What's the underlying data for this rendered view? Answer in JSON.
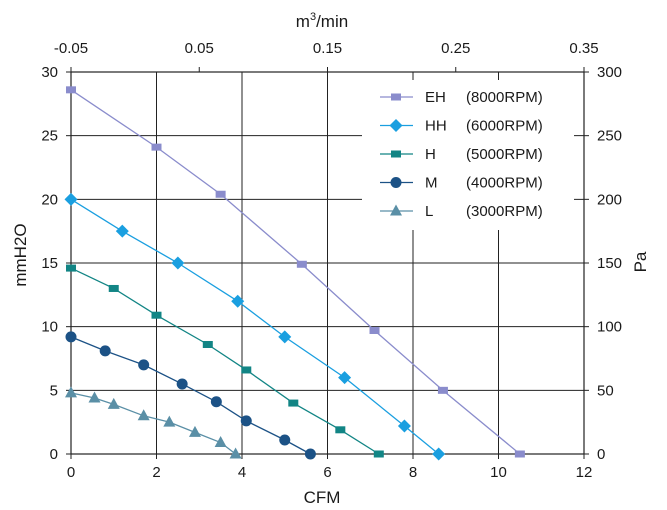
{
  "chart_data": {
    "type": "line",
    "xlabel": "CFM",
    "ylabel": "mmH2O",
    "top_xlabel": "m3/min",
    "right_ylabel": "Pa",
    "xlim": [
      0,
      12
    ],
    "ylim": [
      0,
      30
    ],
    "x_ticks": [
      0,
      2,
      4,
      6,
      8,
      10,
      12
    ],
    "y_ticks": [
      0,
      5,
      10,
      15,
      20,
      25,
      30
    ],
    "top_axis": {
      "label_base": "m",
      "label_sup": "3",
      "label_rest": "/min",
      "ticks": [
        "-0.05",
        "0.05",
        "0.15",
        "0.25",
        "0.35"
      ]
    },
    "right_axis": {
      "label": "Pa",
      "ticks": [
        "0",
        "50",
        "100",
        "150",
        "200",
        "250",
        "300"
      ]
    },
    "grid": true,
    "legend_position": "top-right",
    "series": [
      {
        "name": "EH",
        "rpm": "(8000RPM)",
        "color": "#8a8ccc",
        "marker": "square",
        "points": [
          [
            0,
            28.6
          ],
          [
            2,
            24.1
          ],
          [
            3.5,
            20.4
          ],
          [
            5.4,
            14.9
          ],
          [
            7.1,
            9.7
          ],
          [
            8.7,
            5.0
          ],
          [
            10.5,
            0
          ]
        ]
      },
      {
        "name": "HH",
        "rpm": "(6000RPM)",
        "color": "#1a9fe0",
        "marker": "diamond",
        "points": [
          [
            0,
            20.0
          ],
          [
            1.2,
            17.5
          ],
          [
            2.5,
            15.0
          ],
          [
            3.9,
            12.0
          ],
          [
            5.0,
            9.2
          ],
          [
            6.4,
            6.0
          ],
          [
            7.8,
            2.2
          ],
          [
            8.6,
            0
          ]
        ]
      },
      {
        "name": "H",
        "rpm": "(5000RPM)",
        "color": "#128585",
        "marker": "square",
        "points": [
          [
            0,
            14.6
          ],
          [
            1.0,
            13.0
          ],
          [
            2.0,
            10.9
          ],
          [
            3.2,
            8.6
          ],
          [
            4.1,
            6.6
          ],
          [
            5.2,
            4.0
          ],
          [
            6.3,
            1.9
          ],
          [
            7.2,
            0
          ]
        ]
      },
      {
        "name": "M",
        "rpm": "(4000RPM)",
        "color": "#1c5286",
        "marker": "circle",
        "points": [
          [
            0,
            9.2
          ],
          [
            0.8,
            8.1
          ],
          [
            1.7,
            7.0
          ],
          [
            2.6,
            5.5
          ],
          [
            3.4,
            4.1
          ],
          [
            4.1,
            2.6
          ],
          [
            5.0,
            1.1
          ],
          [
            5.6,
            0
          ]
        ]
      },
      {
        "name": "L",
        "rpm": "(3000RPM)",
        "color": "#5a8fa6",
        "marker": "triangle",
        "points": [
          [
            0,
            4.8
          ],
          [
            0.55,
            4.4
          ],
          [
            1.0,
            3.9
          ],
          [
            1.7,
            3.0
          ],
          [
            2.3,
            2.5
          ],
          [
            2.9,
            1.7
          ],
          [
            3.5,
            0.9
          ],
          [
            3.85,
            0
          ]
        ]
      }
    ]
  }
}
